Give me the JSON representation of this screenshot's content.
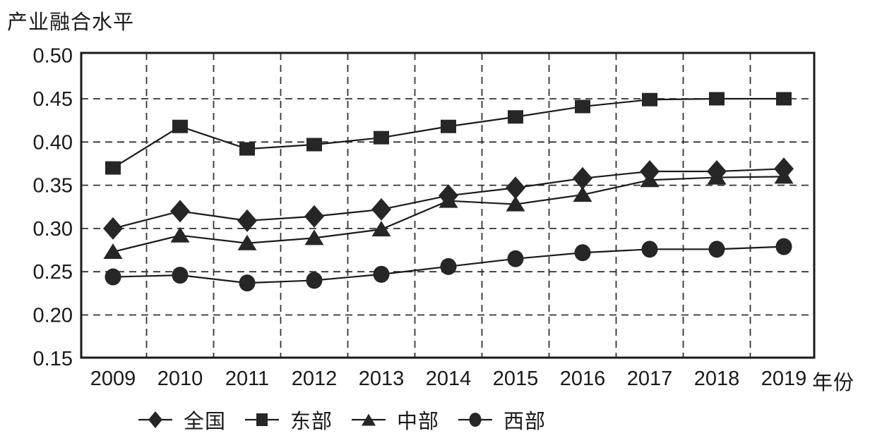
{
  "title": "产业融合水平",
  "chart_data": {
    "type": "line",
    "title": "产业融合水平",
    "xlabel": "年份",
    "ylabel": "产业融合水平",
    "x": [
      2009,
      2010,
      2011,
      2012,
      2013,
      2014,
      2015,
      2016,
      2017,
      2018,
      2019
    ],
    "ylim": [
      0.15,
      0.5
    ],
    "yticks": [
      0.5,
      0.45,
      0.4,
      0.35,
      0.3,
      0.25,
      0.2,
      0.15
    ],
    "ytick_labels": [
      "0.50",
      "0.45",
      "0.40",
      "0.35",
      "0.30",
      "0.25",
      "0.20",
      "0.15"
    ],
    "grid": "dashed horizontal at ticks, dashed vertical between years",
    "legend_position": "bottom",
    "color": "#262626",
    "series": [
      {
        "key": "national",
        "name": "全国",
        "marker": "diamond",
        "values": [
          0.3,
          0.32,
          0.309,
          0.314,
          0.322,
          0.338,
          0.347,
          0.358,
          0.366,
          0.366,
          0.369
        ]
      },
      {
        "key": "east",
        "name": "东部",
        "marker": "square",
        "values": [
          0.37,
          0.418,
          0.392,
          0.397,
          0.405,
          0.418,
          0.429,
          0.441,
          0.449,
          0.45,
          0.45
        ]
      },
      {
        "key": "central",
        "name": "中部",
        "marker": "triangle",
        "values": [
          0.273,
          0.292,
          0.283,
          0.289,
          0.299,
          0.332,
          0.328,
          0.339,
          0.356,
          0.359,
          0.36
        ]
      },
      {
        "key": "west",
        "name": "西部",
        "marker": "circle",
        "values": [
          0.244,
          0.246,
          0.237,
          0.24,
          0.247,
          0.256,
          0.265,
          0.272,
          0.276,
          0.276,
          0.279
        ]
      }
    ]
  }
}
